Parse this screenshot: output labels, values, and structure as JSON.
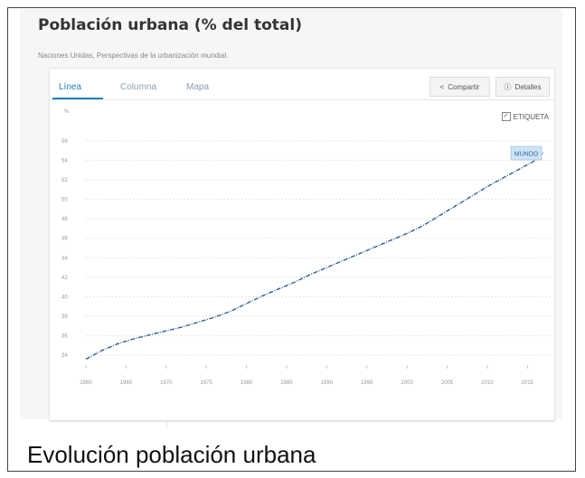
{
  "header": {
    "title": "Población urbana (% del total)",
    "subtitle": "Naciones Unidas, Perspectivas de la urbanización mundial."
  },
  "tabs": [
    {
      "label": "Línea",
      "active": true
    },
    {
      "label": "Columna",
      "active": false
    },
    {
      "label": "Mapa",
      "active": false
    }
  ],
  "actions": {
    "share_label": "Compartir",
    "details_label": "Detalles",
    "label_toggle": "ETIQUETA",
    "label_checked": true
  },
  "colors": {
    "accent": "#1f7fb8",
    "line": "#2f5f8f",
    "highlight_fill": "#cfe3f5"
  },
  "caption": "Evolución población urbana",
  "chart_data": {
    "type": "line",
    "ylabel": "%",
    "xlabel": "",
    "ylim": [
      33,
      57
    ],
    "xlim": [
      1960,
      2018
    ],
    "x_ticks": [
      1960,
      1965,
      1970,
      1975,
      1980,
      1985,
      1990,
      1995,
      2000,
      2005,
      2010,
      2015
    ],
    "y_ticks": [
      34,
      36,
      38,
      40,
      42,
      44,
      46,
      48,
      50,
      52,
      54,
      56
    ],
    "grid": true,
    "legend": "none",
    "series": [
      {
        "name": "MUNDO",
        "x": [
          1960,
          1962,
          1964,
          1966,
          1968,
          1970,
          1972,
          1974,
          1976,
          1978,
          1980,
          1982,
          1984,
          1986,
          1988,
          1990,
          1992,
          1994,
          1996,
          1998,
          2000,
          2002,
          2004,
          2006,
          2008,
          2010,
          2012,
          2014,
          2016,
          2017
        ],
        "values": [
          33.6,
          34.5,
          35.2,
          35.7,
          36.1,
          36.5,
          36.9,
          37.4,
          37.9,
          38.5,
          39.3,
          40.1,
          40.8,
          41.5,
          42.3,
          43.0,
          43.7,
          44.4,
          45.1,
          45.8,
          46.5,
          47.3,
          48.3,
          49.3,
          50.3,
          51.3,
          52.2,
          53.1,
          54.0,
          54.8
        ]
      }
    ],
    "series_label": "MUNDO"
  }
}
